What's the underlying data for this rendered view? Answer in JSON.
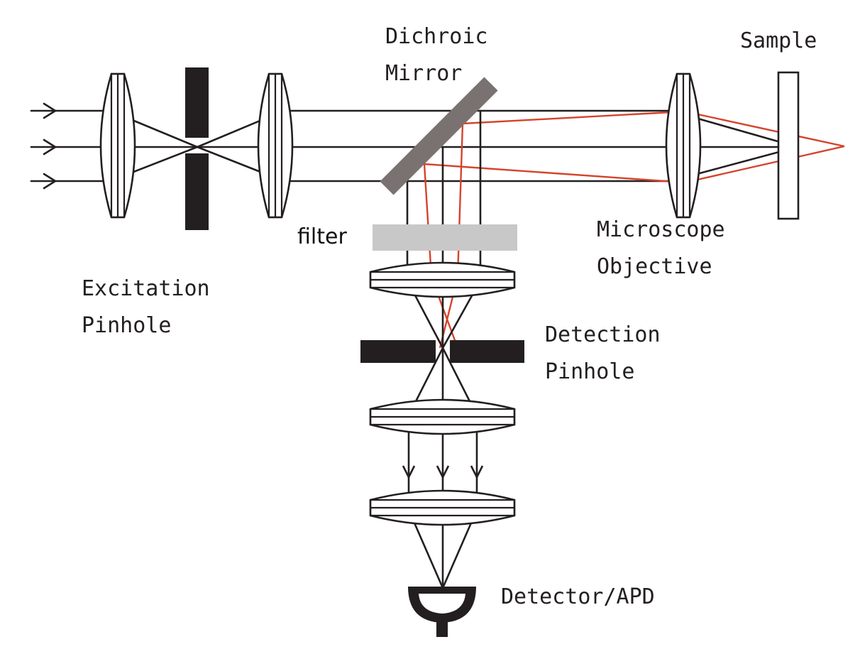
{
  "labels": {
    "dichroic": [
      "Dichroic",
      "Mirror"
    ],
    "sample": "Sample",
    "filter": "filter",
    "objective": [
      "Microscope",
      "Objective"
    ],
    "excitation": [
      "Excitation",
      "Pinhole"
    ],
    "detection": [
      "Detection",
      "Pinhole"
    ],
    "detector": "Detector/APD"
  },
  "colors": {
    "ray": "#231f20",
    "emission": "#d4442c",
    "dichroic_mirror": "#7a7270",
    "filter": "#c8c8c8"
  }
}
